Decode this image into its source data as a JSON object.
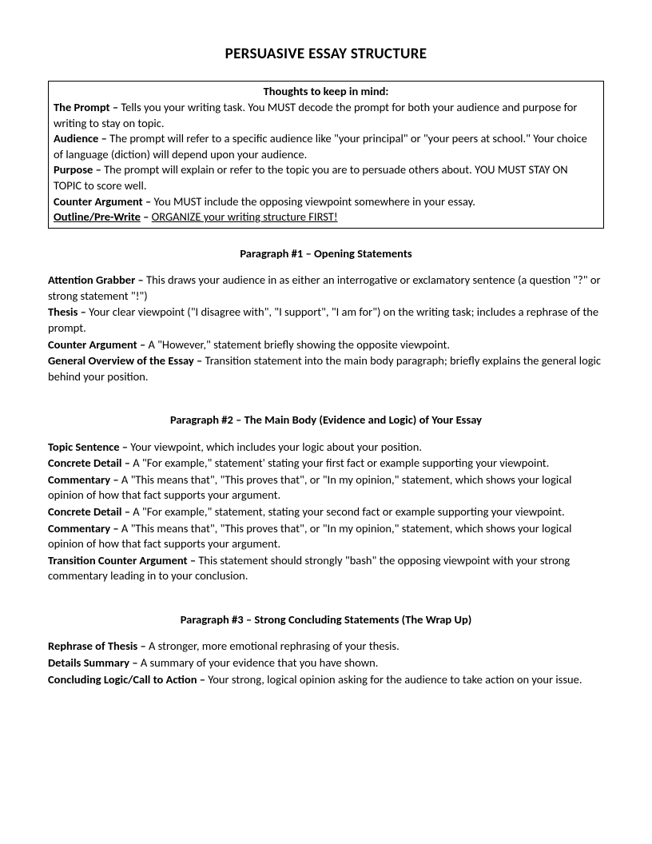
{
  "title": "PERSUASIVE ESSAY STRUCTURE",
  "box": {
    "heading": "Thoughts to keep in mind:",
    "items": [
      {
        "term": "The Prompt – ",
        "text": "Tells you your writing task.  You MUST decode the prompt for both your audience and purpose for writing to stay on topic."
      },
      {
        "term": "Audience – ",
        "text": "The prompt will refer to a specific audience like \"your principal\" or \"your peers at school.\"  Your choice of language (diction) will depend upon your audience."
      },
      {
        "term": "Purpose – ",
        "text": "The prompt will explain or refer to the topic you are to persuade others about.  YOU MUST STAY ON TOPIC to score well."
      },
      {
        "term": "Counter Argument – ",
        "text": "You MUST include the opposing viewpoint somewhere in your essay."
      },
      {
        "term_u": "Outline/Pre-Write",
        "term_after": " – ",
        "text_u": "ORGANIZE your writing structure FIRST!"
      }
    ]
  },
  "sections": [
    {
      "heading": "Paragraph #1 – Opening Statements",
      "items": [
        {
          "term": "Attention Grabber – ",
          "text": "This draws your audience in as either an interrogative or exclamatory sentence (a question \"?\" or strong statement \"!\")"
        },
        {
          "term": "Thesis – ",
          "text": "Your clear viewpoint (\"I disagree with\", \"I support\", \"I am for\") on the writing task; includes a rephrase of the prompt."
        },
        {
          "term": "Counter Argument – ",
          "text": "A \"However,\" statement briefly showing the opposite viewpoint."
        },
        {
          "term": "General Overview of the Essay – ",
          "text": "Transition statement into the main body paragraph; briefly explains the general logic behind your position."
        }
      ]
    },
    {
      "heading": "Paragraph #2 – The Main Body (Evidence and Logic) of Your Essay",
      "items": [
        {
          "term": "Topic Sentence – ",
          "text": "Your viewpoint, which includes your logic about your position."
        },
        {
          "term": "Concrete Detail – ",
          "text": "A \"For example,\" statement' stating your first fact or example supporting your viewpoint."
        },
        {
          "term": "Commentary – ",
          "text": "A \"This means that\", \"This proves that\", or \"In my opinion,\" statement, which shows your logical opinion of how that fact supports your argument."
        },
        {
          "term": "Concrete Detail – ",
          "text": "A \"For example,\" statement, stating your second fact or example supporting your viewpoint."
        },
        {
          "term": "Commentary – ",
          "text": "A \"This means that\", \"This proves that\", or \"In my opinion,\" statement, which shows your logical opinion of how that fact supports your argument."
        },
        {
          "term": "Transition Counter Argument – ",
          "text": "This statement should strongly \"bash\" the opposing viewpoint with your strong commentary leading in to your conclusion."
        }
      ]
    },
    {
      "heading": "Paragraph #3 – Strong Concluding Statements (The Wrap Up)",
      "items": [
        {
          "term": "Rephrase of Thesis – ",
          "text": "A stronger, more emotional rephrasing of your thesis."
        },
        {
          "term": "Details Summary – ",
          "text": "A summary of your evidence that you have shown."
        },
        {
          "term": "Concluding Logic/Call to Action – ",
          "text": "Your strong, logical opinion asking for the audience to take action on your issue."
        }
      ]
    }
  ]
}
